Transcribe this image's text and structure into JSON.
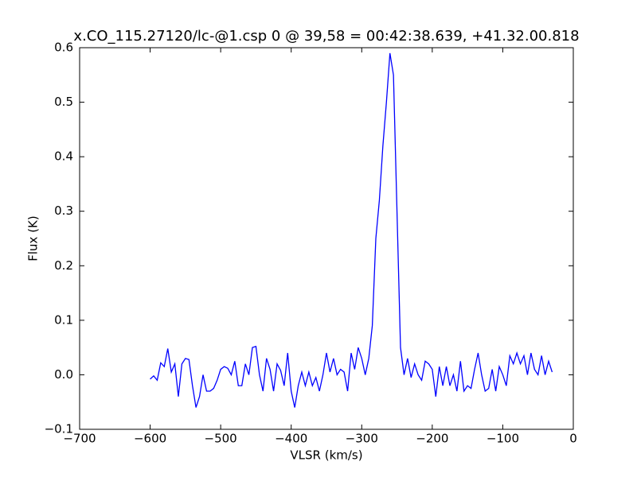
{
  "chart_data": {
    "type": "line",
    "title": "x.CO_115.27120/lc-@1.csp 0 @ 39,58 = 00:42:38.639, +41.32.00.818",
    "x_label": "VLSR (km/s)",
    "y_label": "Flux (K)",
    "x": [
      -600,
      -595,
      -590,
      -585,
      -580,
      -575,
      -570,
      -565,
      -560,
      -555,
      -550,
      -545,
      -540,
      -535,
      -530,
      -525,
      -520,
      -515,
      -510,
      -505,
      -500,
      -495,
      -490,
      -485,
      -480,
      -475,
      -470,
      -465,
      -460,
      -455,
      -450,
      -445,
      -440,
      -435,
      -430,
      -425,
      -420,
      -415,
      -410,
      -405,
      -400,
      -395,
      -390,
      -385,
      -380,
      -375,
      -370,
      -365,
      -360,
      -355,
      -350,
      -345,
      -340,
      -335,
      -330,
      -325,
      -320,
      -315,
      -310,
      -305,
      -300,
      -295,
      -290,
      -285,
      -280,
      -275,
      -270,
      -265,
      -260,
      -255,
      -250,
      -245,
      -240,
      -235,
      -230,
      -225,
      -220,
      -215,
      -210,
      -205,
      -200,
      -195,
      -190,
      -185,
      -180,
      -175,
      -170,
      -165,
      -160,
      -155,
      -150,
      -145,
      -140,
      -135,
      -130,
      -125,
      -120,
      -115,
      -110,
      -105,
      -100,
      -95,
      -90,
      -85,
      -80,
      -75,
      -70,
      -65,
      -60,
      -55,
      -50,
      -45,
      -40,
      -35,
      -30
    ],
    "series": [
      {
        "color": "#0000ff",
        "values": [
          -0.008,
          -0.002,
          -0.01,
          0.022,
          0.015,
          0.048,
          0.005,
          0.02,
          -0.04,
          0.02,
          0.03,
          0.028,
          -0.02,
          -0.06,
          -0.04,
          0.0,
          -0.03,
          -0.03,
          -0.025,
          -0.01,
          0.01,
          0.015,
          0.012,
          0.0,
          0.025,
          -0.02,
          -0.02,
          0.02,
          0.0,
          0.05,
          0.052,
          0.0,
          -0.03,
          0.03,
          0.01,
          -0.03,
          0.02,
          0.008,
          -0.02,
          0.04,
          -0.03,
          -0.06,
          -0.02,
          0.005,
          -0.02,
          0.005,
          -0.02,
          -0.005,
          -0.03,
          0.0,
          0.04,
          0.005,
          0.03,
          0.0,
          0.01,
          0.005,
          -0.03,
          0.04,
          0.01,
          0.05,
          0.03,
          0.0,
          0.03,
          0.09,
          0.25,
          0.32,
          0.42,
          0.5,
          0.59,
          0.55,
          0.3,
          0.05,
          0.0,
          0.03,
          -0.005,
          0.02,
          0.0,
          -0.01,
          0.025,
          0.02,
          0.01,
          -0.04,
          0.015,
          -0.02,
          0.015,
          -0.02,
          0.0,
          -0.03,
          0.025,
          -0.03,
          -0.02,
          -0.025,
          0.01,
          0.04,
          0.0,
          -0.03,
          -0.025,
          0.01,
          -0.03,
          0.015,
          0.0,
          -0.02,
          0.035,
          0.02,
          0.04,
          0.02,
          0.035,
          0.0,
          0.04,
          0.01,
          0.0,
          0.035,
          0.0,
          0.025,
          0.005
        ]
      }
    ],
    "xlim": [
      -700,
      0
    ],
    "xticks": [
      {
        "value": -700,
        "label": "−700"
      },
      {
        "value": -600,
        "label": "−600"
      },
      {
        "value": -500,
        "label": "−500"
      },
      {
        "value": -400,
        "label": "−400"
      },
      {
        "value": -300,
        "label": "−300"
      },
      {
        "value": -200,
        "label": "−200"
      },
      {
        "value": -100,
        "label": "−100"
      },
      0
    ],
    "ylim": [
      -0.1,
      0.6
    ],
    "yticks": [
      {
        "value": -0.1,
        "label": "−0.1"
      },
      {
        "value": 0,
        "label": "0.0"
      },
      0.1,
      0.2,
      0.3,
      0.4,
      0.5,
      0.6
    ],
    "grid": false
  }
}
